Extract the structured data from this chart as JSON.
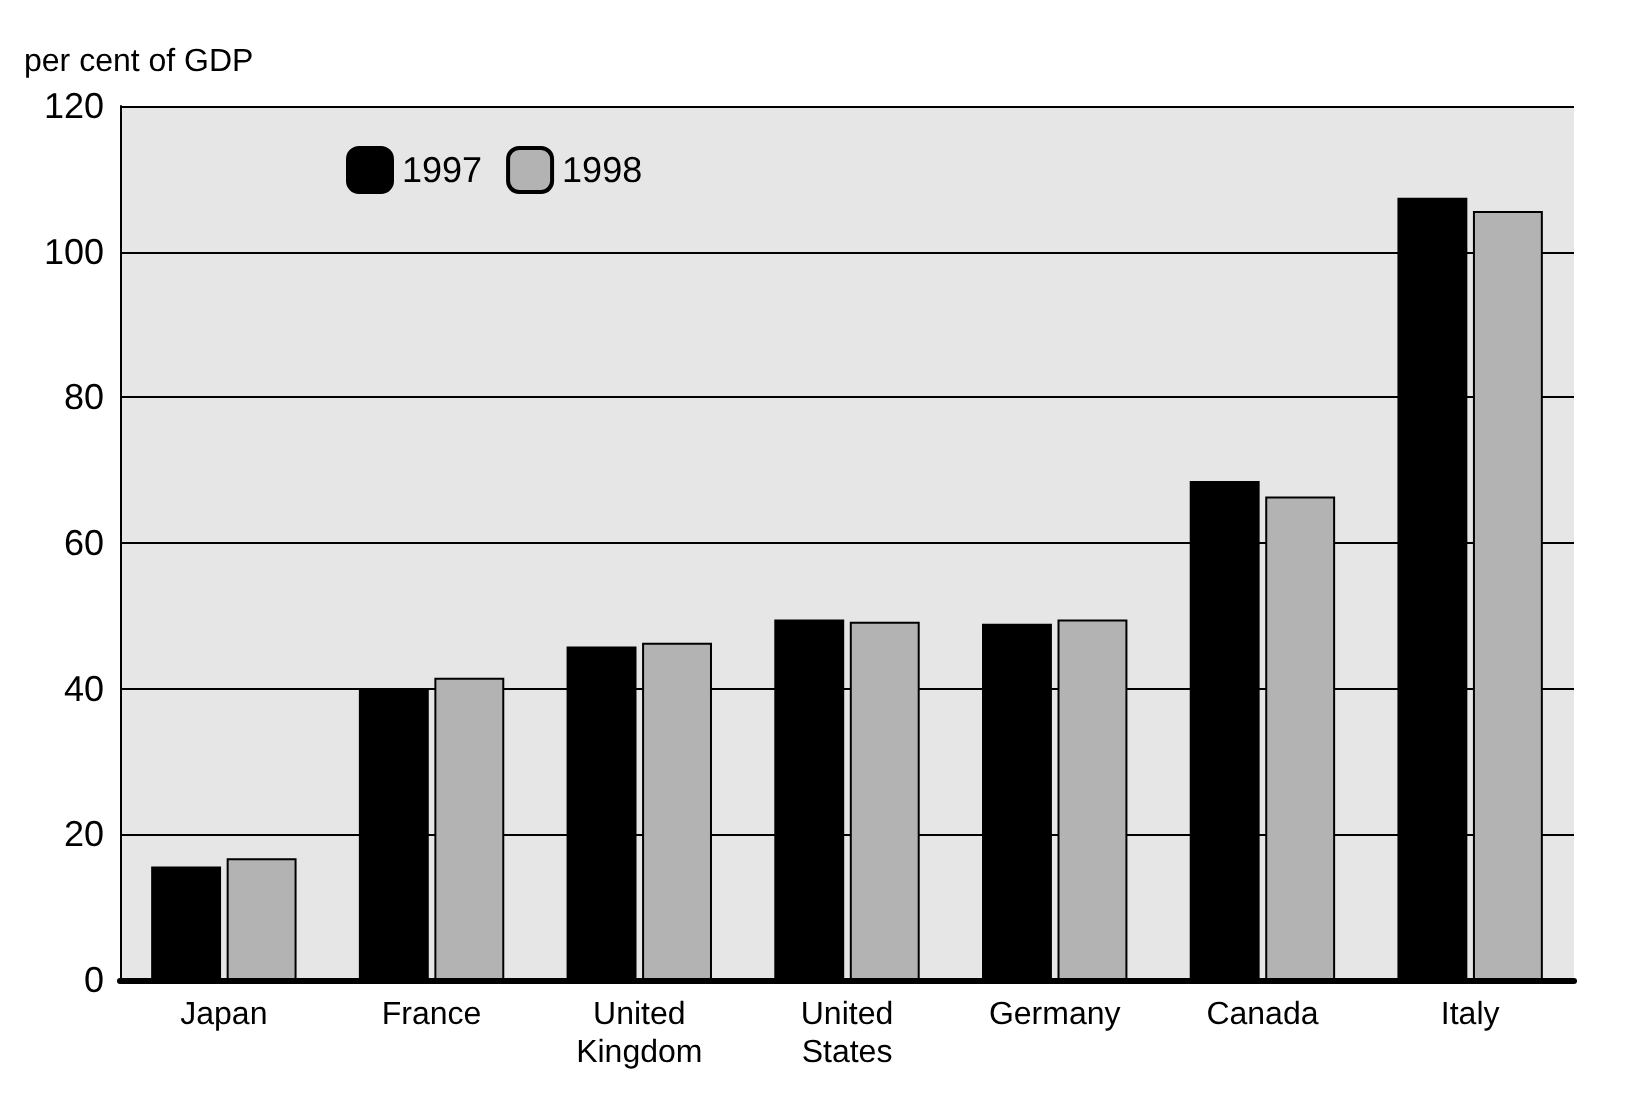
{
  "chart_data": {
    "type": "bar",
    "ylabel": "per cent of GDP",
    "categories": [
      "Japan",
      "France",
      "United\nKingdom",
      "United\nStates",
      "Germany",
      "Canada",
      "Italy"
    ],
    "series": [
      {
        "name": "1997",
        "color": "#000000",
        "values": [
          15.6,
          40,
          45.8,
          49.5,
          48.9,
          68.5,
          107.4
        ]
      },
      {
        "name": "1998",
        "color": "#b3b3b3",
        "values": [
          16.7,
          41.5,
          46.3,
          49.2,
          49.5,
          66.4,
          105.6
        ]
      }
    ],
    "ylim": [
      0,
      120
    ],
    "yticks": [
      0,
      20,
      40,
      60,
      80,
      100,
      120
    ],
    "grid": "y",
    "legend": "top left"
  }
}
